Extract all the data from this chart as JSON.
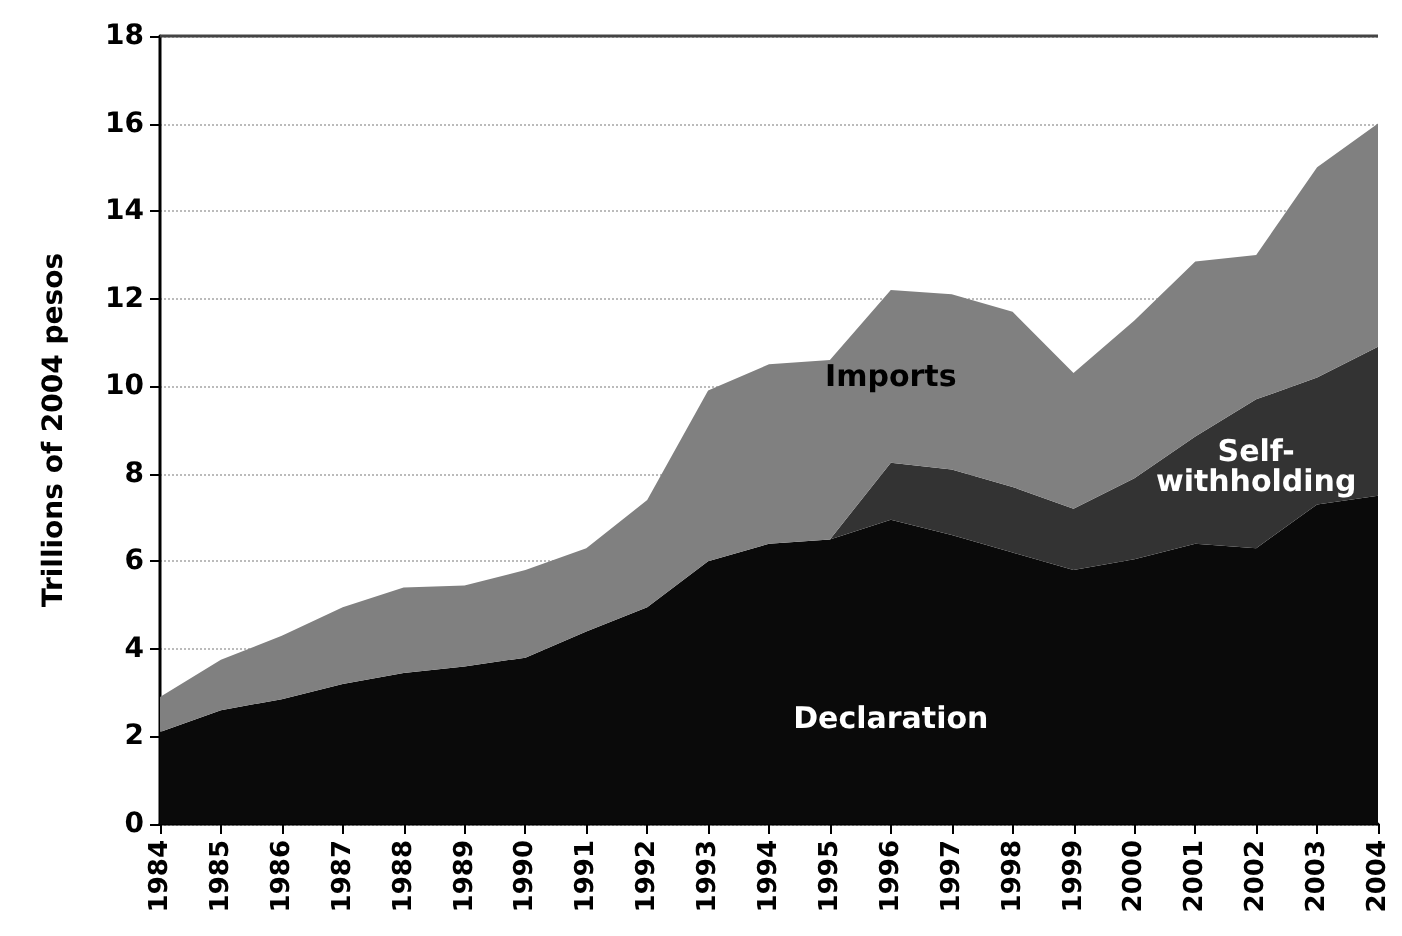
{
  "chart_data": {
    "type": "area",
    "stacked": true,
    "ylabel": "Trillions of 2004 pesos",
    "categories": [
      "1984",
      "1985",
      "1986",
      "1987",
      "1988",
      "1989",
      "1990",
      "1991",
      "1992",
      "1993",
      "1994",
      "1995",
      "1996",
      "1997",
      "1998",
      "1999",
      "2000",
      "2001",
      "2002",
      "2003",
      "2004"
    ],
    "series": [
      {
        "name": "Declaration",
        "color": "#0a0a0a",
        "values": [
          2.1,
          2.6,
          2.85,
          3.2,
          3.45,
          3.6,
          3.8,
          4.4,
          4.95,
          6.0,
          6.4,
          6.5,
          6.95,
          6.6,
          6.2,
          5.8,
          6.05,
          6.4,
          6.3,
          7.3,
          7.5
        ]
      },
      {
        "name": "Self-withholding",
        "color": "#333333",
        "values": [
          0,
          0,
          0,
          0,
          0,
          0,
          0,
          0,
          0,
          0,
          0,
          0,
          1.3,
          1.5,
          1.5,
          1.4,
          1.85,
          2.45,
          3.4,
          2.9,
          3.4
        ]
      },
      {
        "name": "Imports",
        "color": "#808080",
        "values": [
          0.8,
          1.15,
          1.45,
          1.75,
          1.95,
          1.85,
          2.0,
          1.9,
          2.45,
          3.9,
          4.1,
          4.1,
          3.95,
          4.0,
          4.0,
          3.1,
          3.6,
          4.0,
          3.3,
          4.8,
          5.1
        ]
      }
    ],
    "ylim": [
      0,
      18
    ],
    "yticks": [
      0,
      2,
      4,
      6,
      8,
      10,
      12,
      14,
      16,
      18
    ],
    "grid": "y",
    "legend": false
  }
}
